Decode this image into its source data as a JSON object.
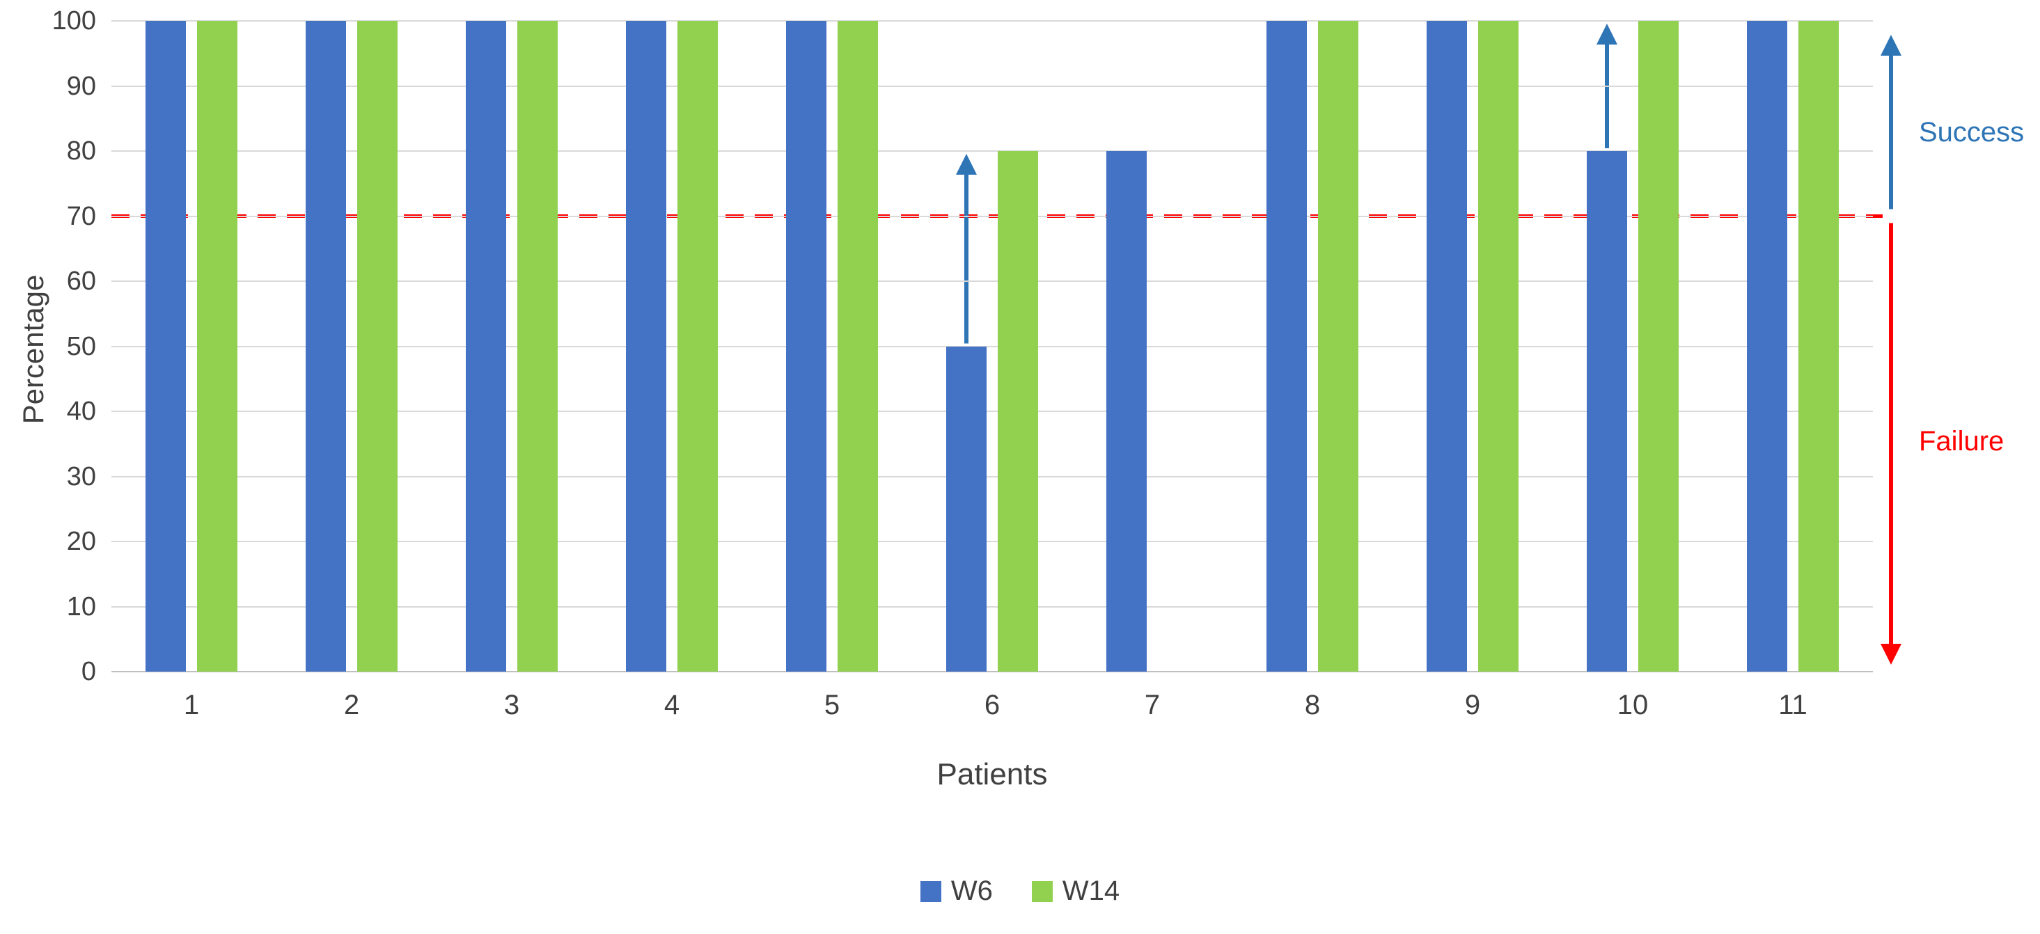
{
  "colors": {
    "w6_blue": "#4472C4",
    "w14_green": "#92D050",
    "threshold_red": "#FF0000",
    "arrow_blue": "#2E75B6",
    "gridline": "#D9D9D9",
    "axis_text": "#404040"
  },
  "chart_data": {
    "type": "bar",
    "categories": [
      "1",
      "2",
      "3",
      "4",
      "5",
      "6",
      "7",
      "8",
      "9",
      "10",
      "11"
    ],
    "series": [
      {
        "name": "W6",
        "color": "#4472C4",
        "values": [
          100,
          100,
          100,
          100,
          100,
          50,
          80,
          100,
          100,
          80,
          100
        ]
      },
      {
        "name": "W14",
        "color": "#92D050",
        "values": [
          100,
          100,
          100,
          100,
          100,
          80,
          0,
          100,
          100,
          100,
          100
        ]
      }
    ],
    "title": "",
    "xlabel": "Patients",
    "ylabel": "Percentage",
    "ylim": [
      0,
      100
    ],
    "ytick_step": 10,
    "grid": true,
    "legend_position": "bottom",
    "annotations": {
      "threshold_value": 70,
      "threshold_style": "dashed",
      "success_label": "Success",
      "failure_label": "Failure",
      "improvement_arrows": [
        {
          "category": "6",
          "from": 50,
          "to": 80
        },
        {
          "category": "10",
          "from": 80,
          "to": 100
        }
      ]
    }
  }
}
